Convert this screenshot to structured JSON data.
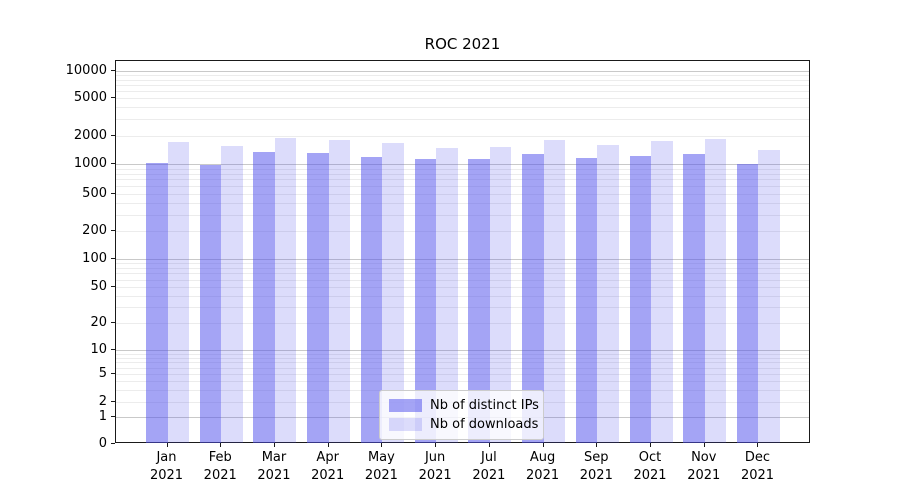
{
  "title": "ROC 2021",
  "chart_data": {
    "type": "bar",
    "title": "ROC 2021",
    "categories": [
      "Jan",
      "Feb",
      "Mar",
      "Apr",
      "May",
      "Jun",
      "Jul",
      "Aug",
      "Sep",
      "Oct",
      "Nov",
      "Dec"
    ],
    "year_label": "2021",
    "series": [
      {
        "name": "Nb of distinct IPs",
        "color": "rgba(80,80,235,0.52)",
        "values": [
          1030,
          970,
          1350,
          1300,
          1190,
          1140,
          1130,
          1290,
          1150,
          1230,
          1290,
          1010
        ]
      },
      {
        "name": "Nb of downloads",
        "color": "rgba(80,80,235,0.20)",
        "values": [
          1720,
          1560,
          1880,
          1820,
          1690,
          1500,
          1540,
          1790,
          1610,
          1780,
          1870,
          1420
        ]
      }
    ],
    "yscale": "symlog",
    "ytick_values": [
      0,
      1,
      2,
      5,
      10,
      20,
      50,
      100,
      200,
      500,
      1000,
      2000,
      5000,
      10000
    ],
    "ylim": [
      0,
      13000
    ],
    "grid": "both",
    "grid_major_color": "#c9c9c9",
    "grid_minor_color": "#ececec",
    "legend_position": "lower center"
  }
}
